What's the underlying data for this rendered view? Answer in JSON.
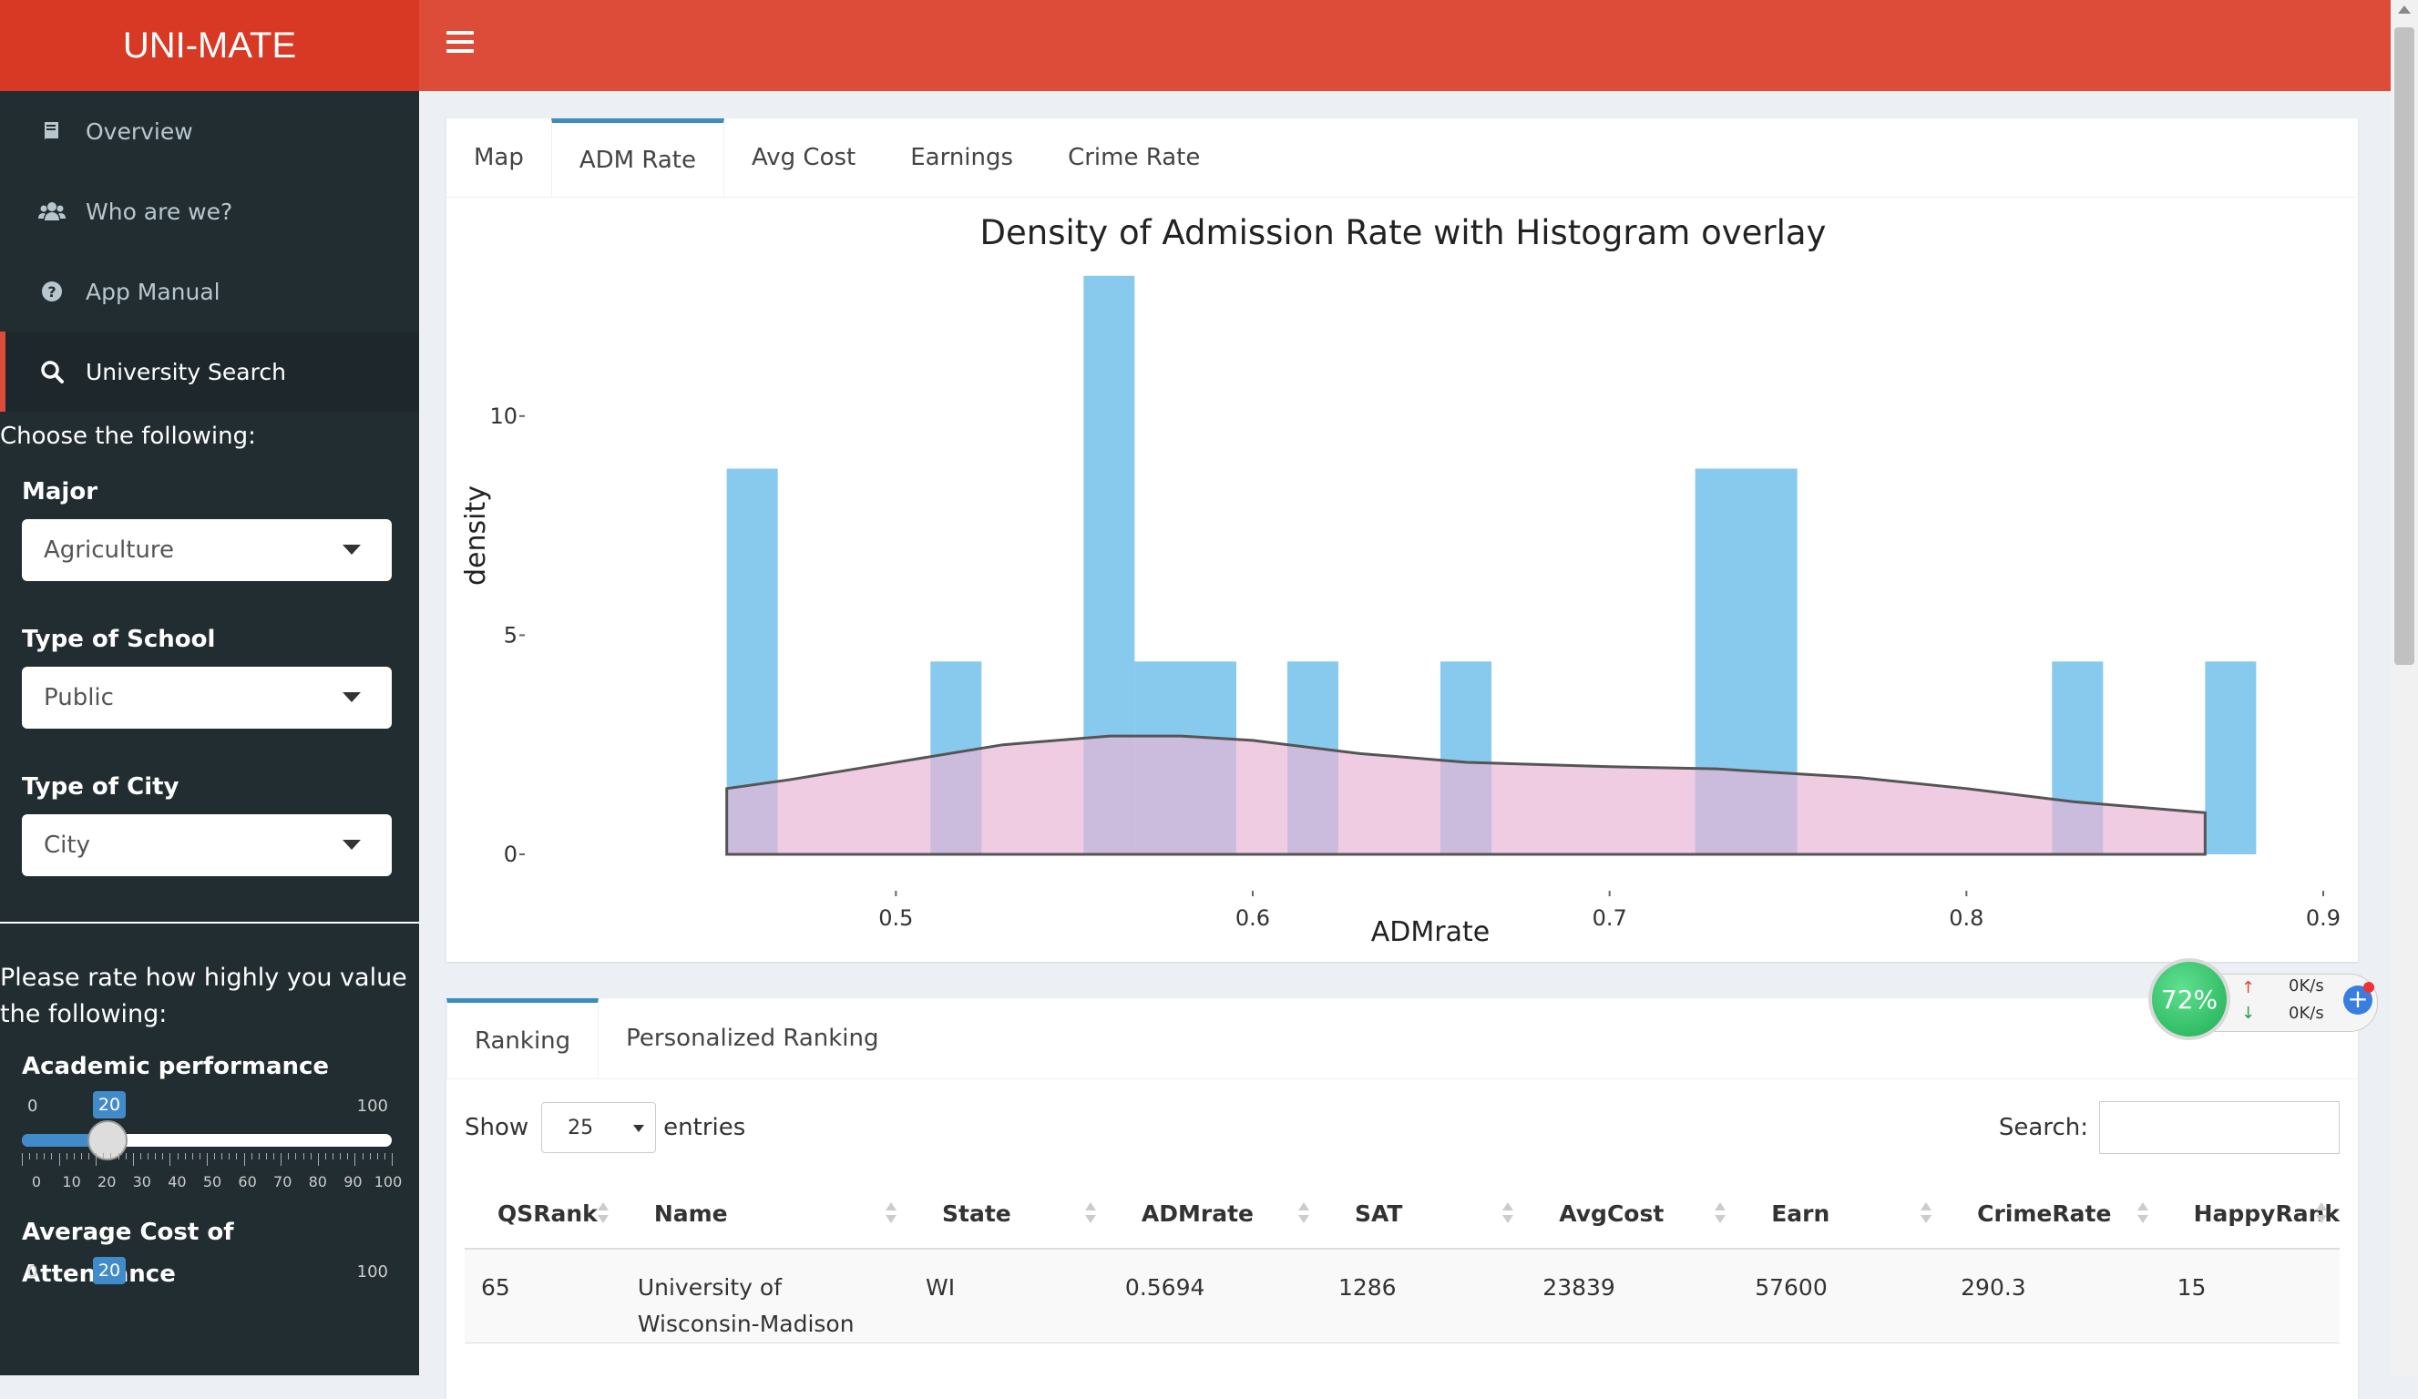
{
  "app": {
    "title": "UNI-MATE"
  },
  "sidebar": {
    "items": [
      {
        "label": "Overview",
        "icon": "book-icon"
      },
      {
        "label": "Who are we?",
        "icon": "users-icon"
      },
      {
        "label": "App Manual",
        "icon": "question-circle-icon"
      },
      {
        "label": "University Search",
        "icon": "search-icon",
        "active": true
      }
    ],
    "choose_text": "Choose the following:",
    "major": {
      "label": "Major",
      "value": "Agriculture"
    },
    "school_type": {
      "label": "Type of School",
      "value": "Public"
    },
    "city_type": {
      "label": "Type of City",
      "value": "City"
    },
    "rate_text": "Please rate how highly you value the following:",
    "sliders": [
      {
        "label": "Academic performance",
        "min": "0",
        "max": "100",
        "value": "20",
        "grid": [
          "0",
          "10",
          "20",
          "30",
          "40",
          "50",
          "60",
          "70",
          "80",
          "90",
          "100"
        ]
      },
      {
        "label": "Average Cost of Attendance",
        "min": "0",
        "max": "100",
        "value": "20"
      }
    ]
  },
  "top_tabs": [
    "Map",
    "ADM Rate",
    "Avg Cost",
    "Earnings",
    "Crime Rate"
  ],
  "top_active_tab": "ADM Rate",
  "chart_data": {
    "type": "bar",
    "title": "Density of Admission Rate with Histogram overlay",
    "xlabel": "ADMrate",
    "ylabel": "density",
    "xlim": [
      0.42,
      0.9
    ],
    "ylim": [
      0,
      13.3
    ],
    "x_ticks": [
      "0.5",
      "0.6",
      "0.7",
      "0.8",
      "0.9"
    ],
    "y_ticks": [
      "0",
      "5",
      "10"
    ],
    "histogram": {
      "color": "#88c9ee",
      "bins": [
        {
          "x0": 0.4526,
          "x1": 0.4669,
          "density": 8.8
        },
        {
          "x0": 0.5097,
          "x1": 0.524,
          "density": 4.4
        },
        {
          "x0": 0.5526,
          "x1": 0.5669,
          "density": 13.2
        },
        {
          "x0": 0.5669,
          "x1": 0.5954,
          "density": 4.4
        },
        {
          "x0": 0.6097,
          "x1": 0.624,
          "density": 4.4
        },
        {
          "x0": 0.6526,
          "x1": 0.6669,
          "density": 4.4
        },
        {
          "x0": 0.724,
          "x1": 0.7526,
          "density": 8.8
        },
        {
          "x0": 0.824,
          "x1": 0.8383,
          "density": 4.4
        },
        {
          "x0": 0.8669,
          "x1": 0.8812,
          "density": 4.4
        }
      ]
    },
    "density_series": {
      "name": "density",
      "fill": "#e8b6d6",
      "stroke": "#555555",
      "points": [
        [
          0.4526,
          1.5
        ],
        [
          0.47,
          1.7
        ],
        [
          0.5,
          2.1
        ],
        [
          0.53,
          2.5
        ],
        [
          0.56,
          2.7
        ],
        [
          0.58,
          2.7
        ],
        [
          0.6,
          2.6
        ],
        [
          0.63,
          2.3
        ],
        [
          0.66,
          2.1
        ],
        [
          0.7,
          2.0
        ],
        [
          0.73,
          1.95
        ],
        [
          0.75,
          1.85
        ],
        [
          0.77,
          1.75
        ],
        [
          0.8,
          1.5
        ],
        [
          0.83,
          1.2
        ],
        [
          0.8669,
          0.95
        ]
      ]
    }
  },
  "bottom_tabs": [
    "Ranking",
    "Personalized Ranking"
  ],
  "bottom_active_tab": "Ranking",
  "table": {
    "show_label": "Show",
    "entries_value": "25",
    "entries_label": "entries",
    "search_label": "Search:",
    "columns": [
      "QSRank",
      "Name",
      "State",
      "ADMrate",
      "SAT",
      "AvgCost",
      "Earn",
      "CrimeRate",
      "HappyRank"
    ],
    "rows": [
      [
        "65",
        "University of Wisconsin-Madison",
        "WI",
        "0.5694",
        "1286",
        "23839",
        "57600",
        "290.3",
        "15"
      ]
    ]
  },
  "net_widget": {
    "percent": "72%",
    "up": "0K/s",
    "down": "0K/s"
  },
  "colors": {
    "header": "#dd4b39",
    "logo": "#d73925",
    "sidebar": "#222d32",
    "accent": "#3c8dbc",
    "slider": "#428bca"
  }
}
